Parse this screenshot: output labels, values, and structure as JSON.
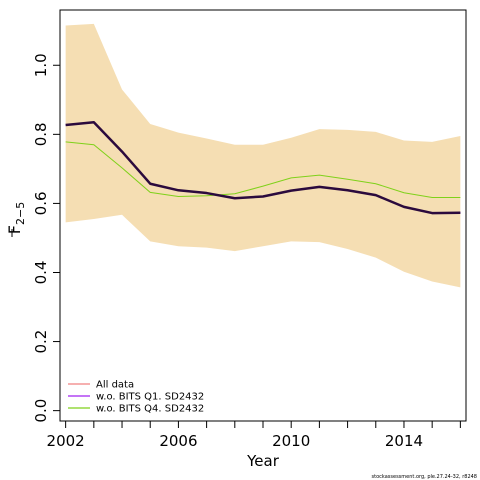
{
  "chart_data": {
    "type": "line",
    "xlabel": "Year",
    "ylabel_main": "F",
    "ylabel_sub": "2−5",
    "x_ticks": [
      2002,
      2006,
      2010,
      2014
    ],
    "y_ticks": [
      "0.0",
      "0.2",
      "0.4",
      "0.6",
      "0.8",
      "1.0"
    ],
    "y_tick_values": [
      0,
      0.2,
      0.4,
      0.6,
      0.8,
      1.0
    ],
    "xlim": [
      2001.8,
      2016.2
    ],
    "ylim": [
      -0.03,
      1.16
    ],
    "years": [
      2002,
      2003,
      2004,
      2005,
      2006,
      2007,
      2008,
      2009,
      2010,
      2011,
      2012,
      2013,
      2014,
      2015,
      2016
    ],
    "band": {
      "color": "#F5DEB3",
      "upper": [
        1.115,
        1.12,
        0.93,
        0.83,
        0.805,
        0.788,
        0.77,
        0.77,
        0.79,
        0.815,
        0.813,
        0.807,
        0.782,
        0.778,
        0.795
      ],
      "lower": [
        0.545,
        0.555,
        0.567,
        0.49,
        0.476,
        0.472,
        0.462,
        0.476,
        0.49,
        0.488,
        0.468,
        0.443,
        0.402,
        0.374,
        0.357
      ]
    },
    "series": [
      {
        "name": "All data",
        "color": "#F08080",
        "values": [
          0.827,
          0.835,
          0.75,
          0.657,
          0.638,
          0.63,
          0.615,
          0.62,
          0.637,
          0.648,
          0.638,
          0.624,
          0.59,
          0.572,
          0.573
        ]
      },
      {
        "name": "w.o. BITS Q1. SD2432",
        "color": "#A020F0",
        "values": [
          0.827,
          0.835,
          0.75,
          0.657,
          0.638,
          0.63,
          0.615,
          0.62,
          0.637,
          0.648,
          0.638,
          0.624,
          0.59,
          0.572,
          0.573
        ]
      },
      {
        "name": "w.o. BITS Q4. SD2432",
        "color": "#7FD11A",
        "values": [
          0.778,
          0.77,
          0.703,
          0.632,
          0.62,
          0.622,
          0.628,
          0.65,
          0.674,
          0.682,
          0.67,
          0.657,
          0.631,
          0.617,
          0.617
        ]
      }
    ],
    "main_line": {
      "color": "#2B0A3D",
      "values": [
        0.827,
        0.835,
        0.75,
        0.657,
        0.638,
        0.63,
        0.615,
        0.62,
        0.637,
        0.648,
        0.638,
        0.624,
        0.59,
        0.572,
        0.573
      ]
    },
    "legend_position": "bottom-left",
    "grid": false
  },
  "footer": "stockassessment.org, ple.27.24-32, r8248"
}
